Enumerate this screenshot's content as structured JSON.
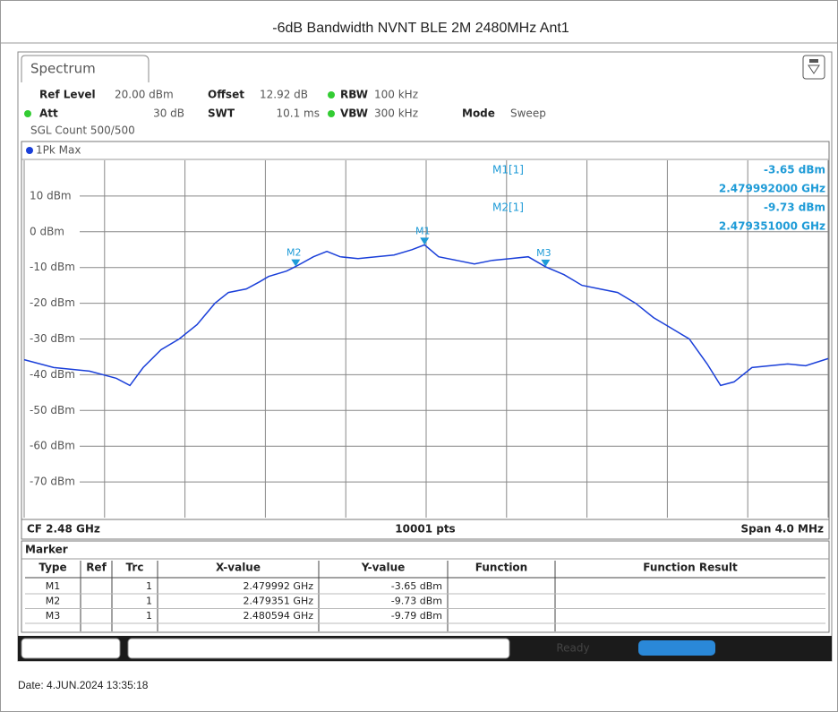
{
  "title": "-6dB Bandwidth NVNT BLE 2M 2480MHz Ant1",
  "tab": "Spectrum",
  "settings": {
    "ref_level_label": "Ref Level",
    "ref_level": "20.00 dBm",
    "offset_label": "Offset",
    "offset": "12.92 dB",
    "rbw_label": "RBW",
    "rbw": "100 kHz",
    "att_label": "Att",
    "att": "30 dB",
    "swt_label": "SWT",
    "swt": "10.1 ms",
    "vbw_label": "VBW",
    "vbw": "300 kHz",
    "mode_label": "Mode",
    "mode": "Sweep",
    "sgl_count": "SGL Count 500/500"
  },
  "chart_data": {
    "type": "line",
    "x": [
      2.478,
      2.478147,
      2.478325,
      2.478459,
      2.478526,
      2.478592,
      2.478681,
      2.478771,
      2.47886,
      2.478949,
      2.479016,
      2.479105,
      2.479171,
      2.479216,
      2.479305,
      2.479351,
      2.479439,
      2.479506,
      2.479572,
      2.479661,
      2.47975,
      2.47984,
      2.479929,
      2.479992,
      2.480062,
      2.480151,
      2.48024,
      2.480329,
      2.480419,
      2.480508,
      2.480594,
      2.480686,
      2.480775,
      2.480864,
      2.480953,
      2.481042,
      2.481131,
      2.48122,
      2.481309,
      2.481398,
      2.481465,
      2.481532,
      2.481621,
      2.48171,
      2.481799,
      2.481888,
      2.482
    ],
    "series": [
      {
        "name": "1Pk Max",
        "color": "#1a3fd9",
        "values": [
          -35.8,
          -38,
          -39,
          -41,
          -43,
          -38,
          -33,
          -30,
          -26,
          -20,
          -17,
          -16,
          -14,
          -12.5,
          -11,
          -9.73,
          -7,
          -5.5,
          -7,
          -7.5,
          -7,
          -6.5,
          -5,
          -3.65,
          -7,
          -8,
          -9,
          -8,
          -7.5,
          -7,
          -9.79,
          -12,
          -15,
          -16,
          -17,
          -20,
          -24,
          -27,
          -30,
          -37,
          -43,
          -42,
          -38,
          -37.5,
          -37,
          -37.5,
          -35.5
        ]
      }
    ],
    "xlim": [
      2.478,
      2.482
    ],
    "xticks": [
      2.478,
      2.4784,
      2.4788,
      2.4792,
      2.4796,
      2.48,
      2.4804,
      2.4808,
      2.4812,
      2.4816,
      2.482
    ],
    "ylim": [
      -80,
      20
    ],
    "yticks": [
      {
        "value": 10,
        "label": "10 dBm"
      },
      {
        "value": 0,
        "label": "0 dBm"
      },
      {
        "value": -10,
        "label": "-10 dBm"
      },
      {
        "value": -20,
        "label": "-20 dBm"
      },
      {
        "value": -30,
        "label": "-30 dBm"
      },
      {
        "value": -40,
        "label": "-40 dBm"
      },
      {
        "value": -50,
        "label": "-50 dBm"
      },
      {
        "value": -60,
        "label": "-60 dBm"
      },
      {
        "value": -70,
        "label": "-70 dBm"
      }
    ],
    "grid": true,
    "markers": [
      {
        "label": "M1",
        "x": 2.479992,
        "y": -3.65
      },
      {
        "label": "M2",
        "x": 2.479351,
        "y": -9.73
      },
      {
        "label": "M3",
        "x": 2.480594,
        "y": -9.79
      }
    ],
    "readout": [
      {
        "name": "M1[1]",
        "level": "-3.65 dBm",
        "freq": "2.479992000 GHz"
      },
      {
        "name": "M2[1]",
        "level": "-9.73 dBm",
        "freq": "2.479351000 GHz"
      }
    ],
    "footer": {
      "cf": "CF 2.48 GHz",
      "pts": "10001 pts",
      "span": "Span 4.0 MHz"
    }
  },
  "marker_table": {
    "title": "Marker",
    "columns": [
      "Type",
      "Ref",
      "Trc",
      "X-value",
      "Y-value",
      "Function",
      "Function Result"
    ],
    "rows": [
      [
        "M1",
        "",
        "1",
        "2.479992 GHz",
        "-3.65 dBm",
        "",
        ""
      ],
      [
        "M2",
        "",
        "1",
        "2.479351 GHz",
        "-9.73 dBm",
        "",
        ""
      ],
      [
        "M3",
        "",
        "1",
        "2.480594 GHz",
        "-9.79 dBm",
        "",
        ""
      ]
    ]
  },
  "status": "Ready",
  "date": "Date: 4.JUN.2024  13:35:18"
}
